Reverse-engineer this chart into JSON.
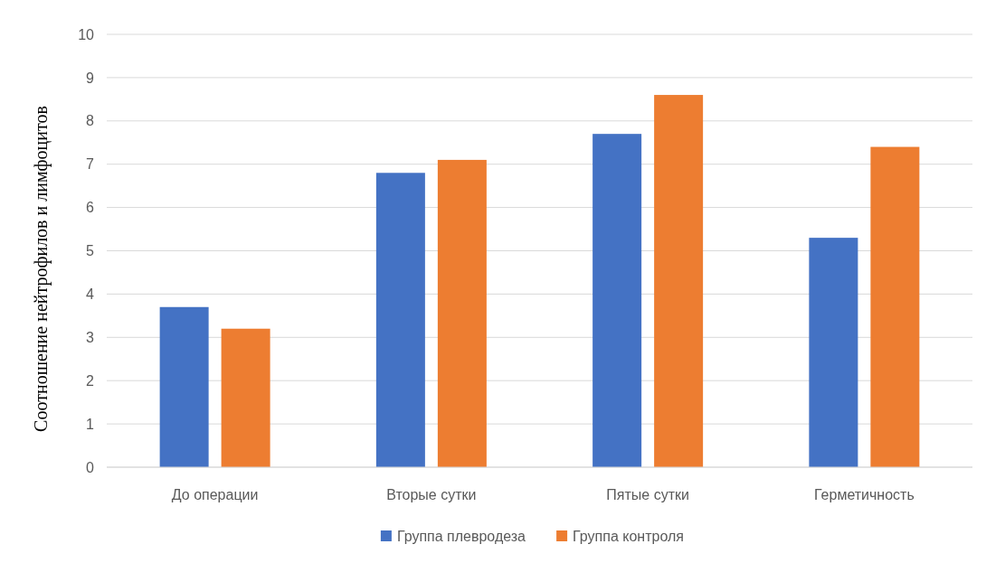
{
  "chart_data": {
    "type": "bar",
    "ylabel": "Соотношение  нейтрофилов  и лимфоцитов",
    "categories": [
      "До операции",
      "Вторые сутки",
      "Пятые сутки",
      "Герметичность"
    ],
    "series": [
      {
        "name": "Группа плевродеза",
        "color": "#4472c4",
        "values": [
          3.7,
          6.8,
          7.7,
          5.3
        ]
      },
      {
        "name": "Группа контроля",
        "color": "#ed7d31",
        "values": [
          3.2,
          7.1,
          8.6,
          7.4
        ]
      }
    ],
    "ylim": [
      0,
      10
    ],
    "yticks": [
      0,
      1,
      2,
      3,
      4,
      5,
      6,
      7,
      8,
      9,
      10
    ],
    "grid": "y",
    "legend": "bottom"
  }
}
